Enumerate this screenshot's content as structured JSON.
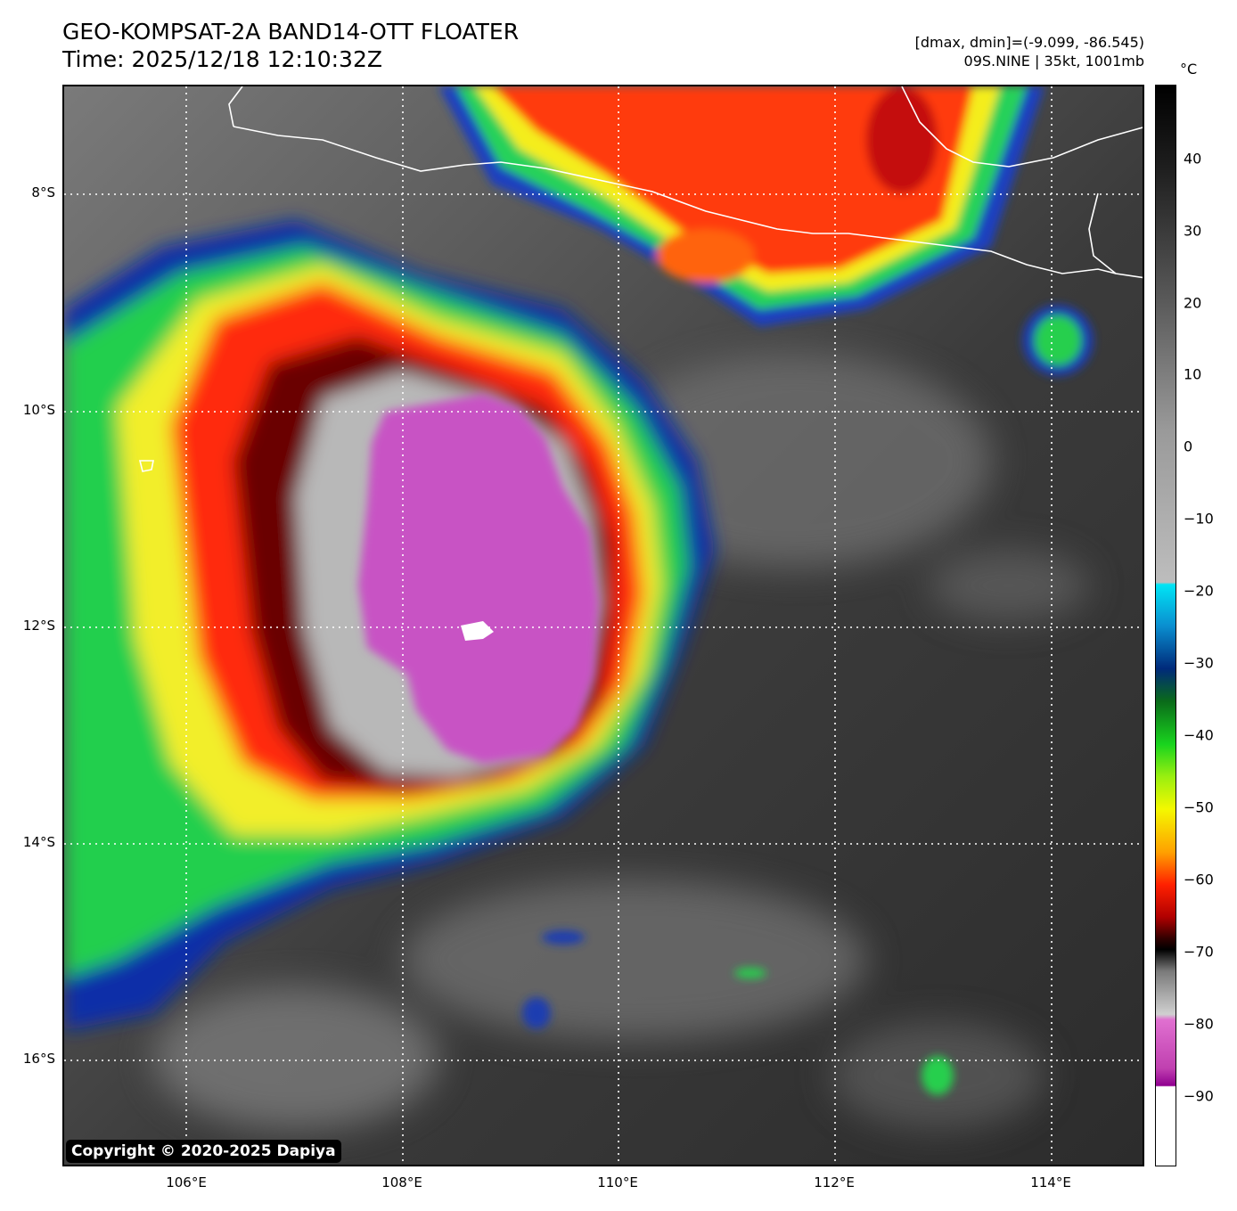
{
  "header": {
    "title_line1": "GEO-KOMPSAT-2A BAND14-OTT FLOATER",
    "title_line2": "Time: 2025/12/18 12:10:32Z",
    "stats_line": "[dmax, dmin]=(-9.099, -86.545)",
    "storm_line": "09S.NINE | 35kt, 1001mb"
  },
  "map": {
    "lat_labels": [
      "8°S",
      "10°S",
      "12°S",
      "14°S",
      "16°S"
    ],
    "lon_labels": [
      "106°E",
      "108°E",
      "110°E",
      "112°E",
      "114°E"
    ],
    "copyright": "Copyright © 2020-2025 Dapiya"
  },
  "colorbar": {
    "unit": "°C",
    "ticks": [
      "40",
      "30",
      "20",
      "10",
      "0",
      "−10",
      "−20",
      "−30",
      "−40",
      "−50",
      "−60",
      "−70",
      "−80",
      "−90"
    ]
  }
}
